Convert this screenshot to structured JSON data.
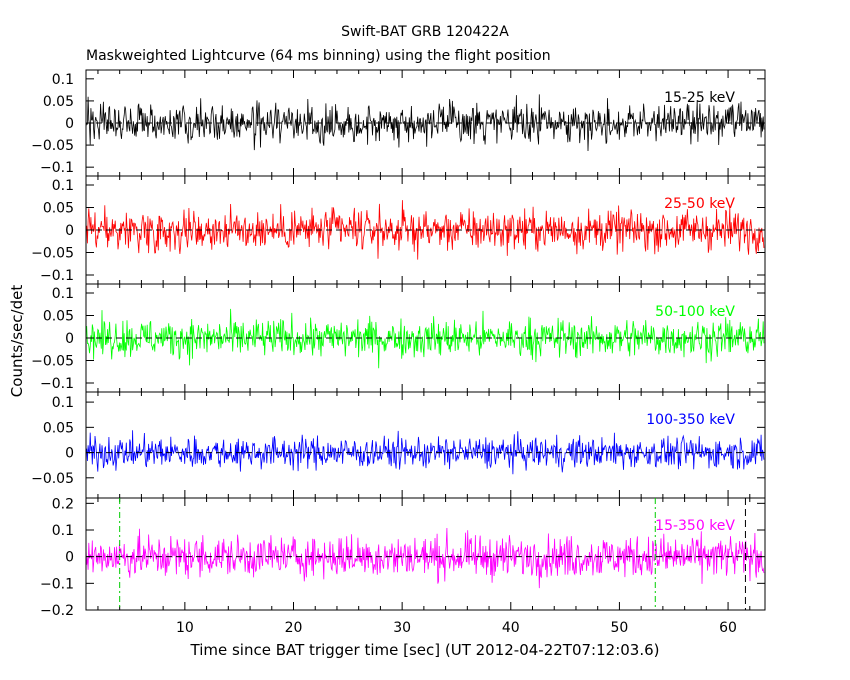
{
  "chart_data": {
    "type": "line",
    "title": "Swift-BAT GRB 120422A",
    "subtitle": "Maskweighted Lightcurve (64 ms binning) using the flight position",
    "xlabel": "Time since BAT trigger time [sec] (UT 2012-04-22T07:12:03.6)",
    "ylabel": "Counts/sec/det",
    "xlim": [
      0.9,
      63.4
    ],
    "x_ticks": [
      10,
      20,
      30,
      40,
      50,
      60
    ],
    "x_tick_labels": [
      "10",
      "20",
      "30",
      "40",
      "50",
      "60"
    ],
    "bin_seconds": 0.064,
    "grid": false,
    "legend": "band label at top-right inside each panel",
    "markers": [
      {
        "name": "",
        "x": 4.0,
        "color": "#00cc00",
        "style": "dash-dot"
      },
      {
        "name": "",
        "x": 53.3,
        "color": "#00cc00",
        "style": "dash-dot"
      },
      {
        "name": "",
        "x": 61.6,
        "color": "#000000",
        "style": "dash"
      }
    ],
    "panels": [
      {
        "band": "15-25 keV",
        "color": "#000000",
        "ylim": [
          -0.12,
          0.12
        ],
        "y_ticks": [
          -0.1,
          -0.05,
          0,
          0.05,
          0.1
        ],
        "y_tick_labels": [
          "−0.1",
          "−0.05",
          "0",
          "0.05",
          "0.1"
        ],
        "noise_sigma": 0.03,
        "values": [
          -0.08,
          -0.09,
          0.11
        ]
      },
      {
        "band": "25-50 keV",
        "color": "#ff0000",
        "ylim": [
          -0.12,
          0.12
        ],
        "y_ticks": [
          -0.1,
          -0.05,
          0,
          0.05,
          0.1
        ],
        "y_tick_labels": [
          "−0.1",
          "−0.05",
          "0",
          "0.05",
          "0.1"
        ],
        "noise_sigma": 0.032,
        "values": [
          -0.1,
          0.1
        ]
      },
      {
        "band": "50-100 keV",
        "color": "#00ff00",
        "ylim": [
          -0.12,
          0.12
        ],
        "y_ticks": [
          -0.1,
          -0.05,
          0,
          0.05,
          0.1
        ],
        "y_tick_labels": [
          "−0.1",
          "−0.05",
          "0",
          "0.05",
          "0.1"
        ],
        "noise_sigma": 0.03,
        "values": [
          -0.11,
          0.09
        ]
      },
      {
        "band": "100-350 keV",
        "color": "#0000ff",
        "ylim": [
          -0.09,
          0.12
        ],
        "y_ticks": [
          -0.05,
          0,
          0.05,
          0.1
        ],
        "y_tick_labels": [
          "−0.05",
          "0",
          "0.05",
          "0.1"
        ],
        "noise_sigma": 0.022,
        "values": [
          0.07,
          -0.06
        ]
      },
      {
        "band": "15-350 keV",
        "color": "#ff00ff",
        "ylim": [
          -0.2,
          0.22
        ],
        "y_ticks": [
          -0.2,
          -0.1,
          0,
          0.1,
          0.2
        ],
        "y_tick_labels": [
          "−0.2",
          "−0.1",
          "0",
          "0.1",
          "0.2"
        ],
        "noise_sigma": 0.055,
        "values": [
          0.15,
          -0.17
        ]
      }
    ]
  }
}
